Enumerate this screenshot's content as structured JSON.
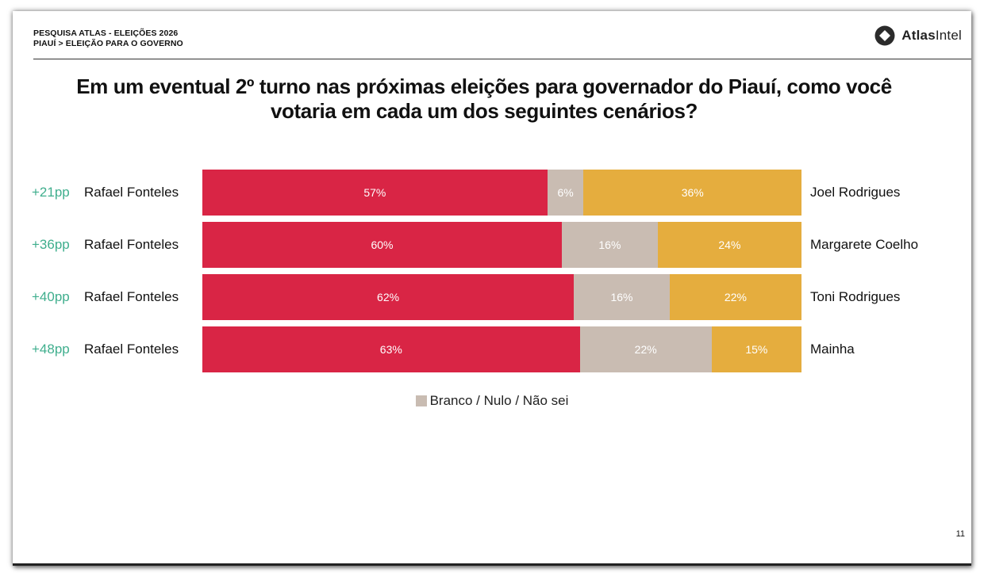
{
  "header": {
    "line1": "PESQUISA ATLAS - ELEIÇÕES 2026",
    "line2": "PIAUÍ > ELEIÇÃO PARA O GOVERNO"
  },
  "logo": {
    "strong": "Atlas",
    "light": "Intel",
    "icon": "atlasintel-logo-icon"
  },
  "title": {
    "line1": "Em um eventual 2º turno nas próximas eleições para governador do Piauí, como você",
    "line2": "votaria em cada um dos seguintes cenários?"
  },
  "colors": {
    "left": "#d92545",
    "blank": "#c9bcb2",
    "right": "#e5ad3e",
    "diff": "#3fae8d"
  },
  "chart_data": {
    "type": "bar",
    "orientation": "horizontal-stacked-100",
    "title": "Em um eventual 2º turno nas próximas eleições para governador do Piauí, como você votaria em cada um dos seguintes cenários?",
    "xlim": [
      0,
      100
    ],
    "rows": [
      {
        "margin": "+21pp",
        "left_candidate": "Rafael Fonteles",
        "left_value": 57,
        "left_label": "57%",
        "blank_value": 6,
        "blank_label": "6%",
        "right_value": 36,
        "right_label": "36%",
        "right_candidate": "Joel Rodrigues"
      },
      {
        "margin": "+36pp",
        "left_candidate": "Rafael Fonteles",
        "left_value": 60,
        "left_label": "60%",
        "blank_value": 16,
        "blank_label": "16%",
        "right_value": 24,
        "right_label": "24%",
        "right_candidate": "Margarete Coelho"
      },
      {
        "margin": "+40pp",
        "left_candidate": "Rafael Fonteles",
        "left_value": 62,
        "left_label": "62%",
        "blank_value": 16,
        "blank_label": "16%",
        "right_value": 22,
        "right_label": "22%",
        "right_candidate": "Toni Rodrigues"
      },
      {
        "margin": "+48pp",
        "left_candidate": "Rafael Fonteles",
        "left_value": 63,
        "left_label": "63%",
        "blank_value": 22,
        "blank_label": "22%",
        "right_value": 15,
        "right_label": "15%",
        "right_candidate": "Mainha"
      }
    ],
    "legend": "Branco / Nulo / Não sei"
  },
  "page_number": "11"
}
